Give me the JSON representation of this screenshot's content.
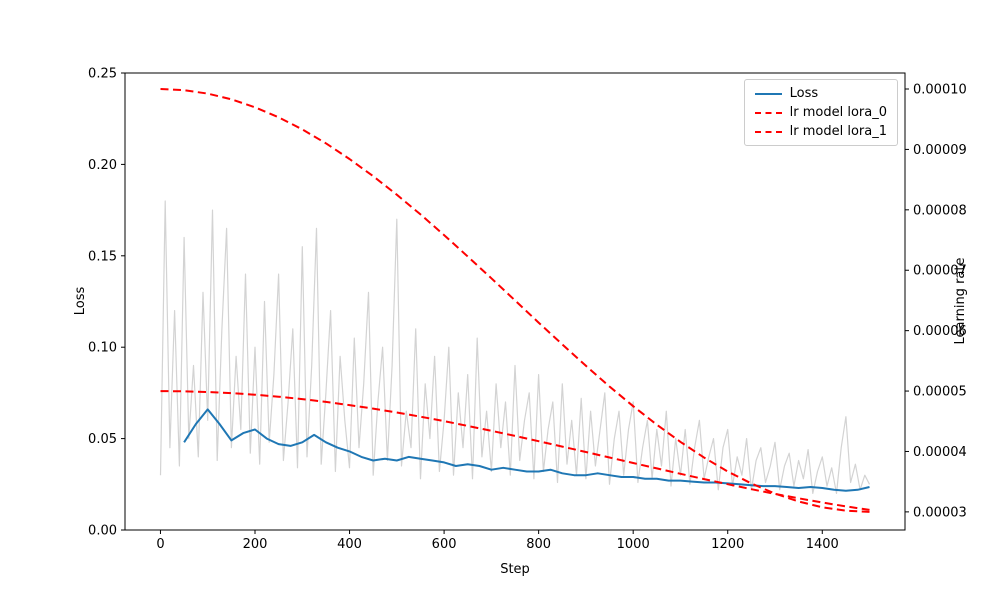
{
  "chart_data": {
    "type": "line",
    "title": "",
    "xlabel": "Step",
    "ylabel_left": "Loss",
    "ylabel_right": "Learning rate",
    "xlim": [
      -75,
      1575
    ],
    "ylim_left": [
      0,
      0.25
    ],
    "ylim_right": [
      2.7e-05,
      0.00010265
    ],
    "grid": false,
    "xticks": {
      "values": [
        0,
        200,
        400,
        600,
        800,
        1000,
        1200,
        1400
      ],
      "labels": [
        "0",
        "200",
        "400",
        "600",
        "800",
        "1000",
        "1200",
        "1400"
      ]
    },
    "yticks_left": {
      "values": [
        0,
        0.05,
        0.1,
        0.15,
        0.2,
        0.25
      ],
      "labels": [
        "0.00",
        "0.05",
        "0.10",
        "0.15",
        "0.20",
        "0.25"
      ]
    },
    "yticks_right": {
      "values": [
        3e-05,
        4e-05,
        5e-05,
        6e-05,
        7e-05,
        8e-05,
        9e-05,
        0.0001
      ],
      "labels": [
        "0.00003",
        "0.00004",
        "0.00005",
        "0.00006",
        "0.00007",
        "0.00008",
        "0.00009",
        "0.00010"
      ]
    },
    "legend": {
      "position": "upper right",
      "entries": [
        {
          "label": "Loss",
          "color": "#1f77b4",
          "dash": "solid"
        },
        {
          "label": "lr model lora_0",
          "color": "#ff0000",
          "dash": "dashed"
        },
        {
          "label": "lr model lora_1",
          "color": "#ff0000",
          "dash": "dashed"
        }
      ]
    },
    "series": [
      {
        "name": "raw-loss",
        "legend": null,
        "axis": "left",
        "color": "#d3d3d3",
        "dash": "solid",
        "width": 1.2,
        "x_start": 0,
        "x_step": 10,
        "values": [
          0.03,
          0.18,
          0.045,
          0.12,
          0.035,
          0.16,
          0.05,
          0.09,
          0.04,
          0.13,
          0.06,
          0.175,
          0.038,
          0.11,
          0.165,
          0.045,
          0.095,
          0.055,
          0.14,
          0.042,
          0.1,
          0.036,
          0.125,
          0.048,
          0.085,
          0.14,
          0.038,
          0.07,
          0.11,
          0.034,
          0.155,
          0.04,
          0.09,
          0.165,
          0.036,
          0.075,
          0.12,
          0.032,
          0.095,
          0.06,
          0.034,
          0.105,
          0.045,
          0.08,
          0.13,
          0.03,
          0.07,
          0.1,
          0.038,
          0.09,
          0.17,
          0.035,
          0.065,
          0.045,
          0.11,
          0.028,
          0.08,
          0.05,
          0.095,
          0.032,
          0.06,
          0.1,
          0.03,
          0.075,
          0.045,
          0.085,
          0.028,
          0.105,
          0.04,
          0.065,
          0.032,
          0.08,
          0.045,
          0.07,
          0.03,
          0.09,
          0.038,
          0.06,
          0.075,
          0.028,
          0.085,
          0.032,
          0.055,
          0.07,
          0.026,
          0.08,
          0.036,
          0.06,
          0.03,
          0.072,
          0.028,
          0.065,
          0.035,
          0.055,
          0.075,
          0.025,
          0.05,
          0.065,
          0.03,
          0.055,
          0.07,
          0.026,
          0.045,
          0.06,
          0.028,
          0.055,
          0.035,
          0.065,
          0.024,
          0.05,
          0.03,
          0.055,
          0.025,
          0.045,
          0.06,
          0.028,
          0.04,
          0.05,
          0.022,
          0.045,
          0.055,
          0.024,
          0.04,
          0.03,
          0.05,
          0.022,
          0.038,
          0.045,
          0.026,
          0.035,
          0.048,
          0.022,
          0.035,
          0.042,
          0.024,
          0.038,
          0.028,
          0.044,
          0.02,
          0.032,
          0.04,
          0.024,
          0.034,
          0.02,
          0.045,
          0.062,
          0.026,
          0.036,
          0.022,
          0.03,
          0.025
        ]
      },
      {
        "name": "smoothed-loss",
        "legend": "Loss",
        "axis": "left",
        "color": "#1f77b4",
        "dash": "solid",
        "width": 2,
        "x_start": 50,
        "x_step": 25,
        "values": [
          0.048,
          0.058,
          0.066,
          0.058,
          0.049,
          0.053,
          0.055,
          0.05,
          0.047,
          0.046,
          0.048,
          0.052,
          0.048,
          0.045,
          0.043,
          0.04,
          0.038,
          0.039,
          0.038,
          0.04,
          0.039,
          0.038,
          0.037,
          0.035,
          0.036,
          0.035,
          0.033,
          0.034,
          0.033,
          0.032,
          0.032,
          0.033,
          0.031,
          0.03,
          0.03,
          0.031,
          0.03,
          0.029,
          0.029,
          0.028,
          0.028,
          0.027,
          0.027,
          0.0265,
          0.026,
          0.026,
          0.0255,
          0.025,
          0.0245,
          0.024,
          0.024,
          0.0235,
          0.023,
          0.0235,
          0.023,
          0.022,
          0.0215,
          0.022,
          0.0235
        ]
      },
      {
        "name": "lr-lora-0",
        "legend": "lr model lora_0",
        "axis": "right",
        "color": "#ff0000",
        "dash": "dashed",
        "width": 2,
        "x_start": 0,
        "x_step": 50,
        "values": [
          0.0001,
          9.981e-05,
          9.924e-05,
          9.829e-05,
          9.697e-05,
          9.531e-05,
          9.332e-05,
          9.101e-05,
          8.842e-05,
          8.557e-05,
          8.25e-05,
          7.924e-05,
          7.582e-05,
          7.228e-05,
          6.866e-05,
          6.5e-05,
          6.134e-05,
          5.772e-05,
          5.418e-05,
          5.076e-05,
          4.75e-05,
          4.443e-05,
          4.158e-05,
          3.899e-05,
          3.668e-05,
          3.469e-05,
          3.303e-05,
          3.171e-05,
          3.076e-05,
          3.019e-05,
          3e-05
        ]
      },
      {
        "name": "lr-lora-1",
        "legend": "lr model lora_1",
        "axis": "right",
        "color": "#ff0000",
        "dash": "dashed",
        "width": 2,
        "x_start": 0,
        "x_step": 50,
        "values": [
          5e-05,
          4.996e-05,
          4.985e-05,
          4.966e-05,
          4.94e-05,
          4.907e-05,
          4.867e-05,
          4.821e-05,
          4.768e-05,
          4.709e-05,
          4.645e-05,
          4.576e-05,
          4.502e-05,
          4.424e-05,
          4.342e-05,
          4.257e-05,
          4.17e-05,
          4.081e-05,
          3.991e-05,
          3.9e-05,
          3.809e-05,
          3.719e-05,
          3.63e-05,
          3.543e-05,
          3.458e-05,
          3.376e-05,
          3.298e-05,
          3.224e-05,
          3.155e-05,
          3.091e-05,
          3.032e-05
        ]
      }
    ]
  }
}
